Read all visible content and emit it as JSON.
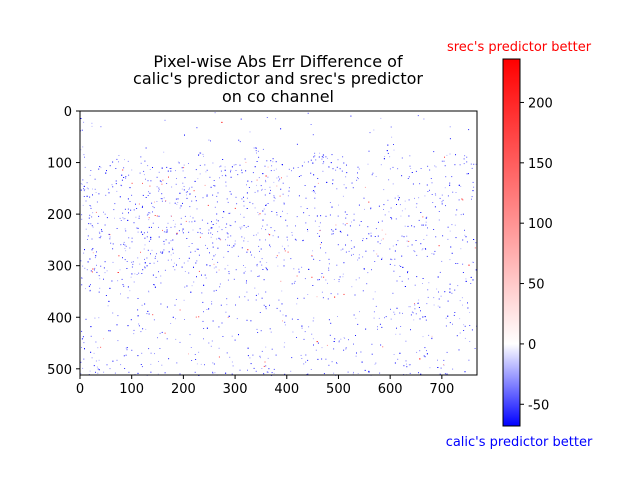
{
  "chart_data": {
    "type": "heatmap",
    "title_lines": [
      "Pixel-wise Abs Err Difference of",
      "calic's predictor and srec's predictor",
      "on co channel"
    ],
    "x_ticks": [
      "0",
      "100",
      "200",
      "300",
      "400",
      "500",
      "600",
      "700"
    ],
    "y_ticks": [
      "0",
      "100",
      "200",
      "300",
      "400",
      "500"
    ],
    "x_range": [
      0,
      768
    ],
    "y_range": [
      0,
      512
    ],
    "y_inverted": true,
    "colorbar": {
      "label_top": "srec's predictor better",
      "label_bottom": "calic's predictor better",
      "range": [
        -68,
        236
      ],
      "ticks": [
        "-50",
        "0",
        "50",
        "100",
        "150",
        "200"
      ],
      "colors": {
        "low": "#0000ff",
        "mid": "#ffffff",
        "high": "#ff0000"
      }
    },
    "grid": false
  }
}
